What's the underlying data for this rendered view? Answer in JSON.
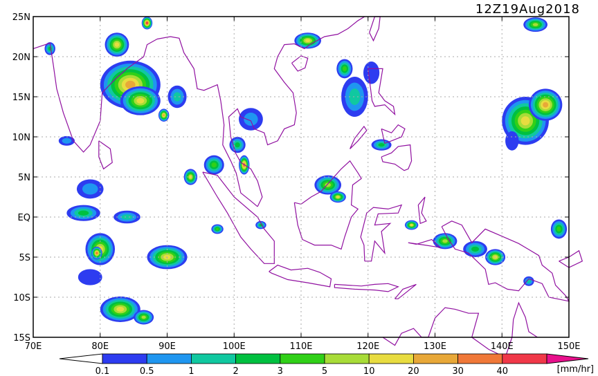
{
  "title": "12Z19Aug2018",
  "axes": {
    "lat_labels": [
      "25N",
      "20N",
      "15N",
      "10N",
      "5N",
      "EQ",
      "5S",
      "10S",
      "15S"
    ],
    "lat_values": [
      25,
      20,
      15,
      10,
      5,
      0,
      -5,
      -10,
      -15
    ],
    "lon_labels": [
      "70E",
      "80E",
      "90E",
      "100E",
      "110E",
      "120E",
      "130E",
      "140E",
      "150E"
    ],
    "lon_values": [
      70,
      80,
      90,
      100,
      110,
      120,
      130,
      140,
      150
    ],
    "lon_range": [
      70,
      150
    ],
    "lat_range": [
      -15,
      25
    ],
    "grid": true
  },
  "colorbar": {
    "unit_label": "[mm/hr]",
    "tick_labels": [
      "0.1",
      "0.5",
      "1",
      "2",
      "3",
      "5",
      "10",
      "20",
      "30",
      "40"
    ],
    "colors": [
      "#2d3cf0",
      "#1f96f0",
      "#10c8a0",
      "#00c040",
      "#30d018",
      "#a8dc38",
      "#e8dc40",
      "#e8a838",
      "#f07838",
      "#f03848"
    ],
    "low_arrow_color": "#ffffff",
    "high_arrow_color": "#e8108c"
  },
  "colors": {
    "coastline": "#9010a0",
    "grid": "#aaaaaa",
    "frame": "#000000"
  },
  "rain_regions": [
    {
      "lon": 84.5,
      "lat": 16.5,
      "rx": 4.5,
      "ry": 3.0,
      "level": 7
    },
    {
      "lon": 86.0,
      "lat": 14.5,
      "rx": 3.0,
      "ry": 1.8,
      "level": 6
    },
    {
      "lon": 82.5,
      "lat": 21.5,
      "rx": 1.8,
      "ry": 1.5,
      "level": 6
    },
    {
      "lon": 87.0,
      "lat": 24.2,
      "rx": 0.8,
      "ry": 0.8,
      "level": 9
    },
    {
      "lon": 91.5,
      "lat": 15.0,
      "rx": 1.4,
      "ry": 1.4,
      "level": 2
    },
    {
      "lon": 89.5,
      "lat": 12.7,
      "rx": 0.8,
      "ry": 0.8,
      "level": 7
    },
    {
      "lon": 102.5,
      "lat": 12.2,
      "rx": 1.8,
      "ry": 1.4,
      "level": 1
    },
    {
      "lon": 100.5,
      "lat": 9.0,
      "rx": 1.2,
      "ry": 1.0,
      "level": 3
    },
    {
      "lon": 101.5,
      "lat": 6.5,
      "rx": 0.8,
      "ry": 1.2,
      "level": 8
    },
    {
      "lon": 97.0,
      "lat": 6.5,
      "rx": 1.5,
      "ry": 1.2,
      "level": 4
    },
    {
      "lon": 93.5,
      "lat": 5.0,
      "rx": 1.0,
      "ry": 1.0,
      "level": 6
    },
    {
      "lon": 114.0,
      "lat": 4.0,
      "rx": 2.0,
      "ry": 1.2,
      "level": 5
    },
    {
      "lon": 115.5,
      "lat": 2.5,
      "rx": 1.2,
      "ry": 0.7,
      "level": 6
    },
    {
      "lon": 111.0,
      "lat": 22.0,
      "rx": 2.0,
      "ry": 1.0,
      "level": 6
    },
    {
      "lon": 118.0,
      "lat": 15.0,
      "rx": 2.0,
      "ry": 2.5,
      "level": 2
    },
    {
      "lon": 116.5,
      "lat": 18.5,
      "rx": 1.2,
      "ry": 1.2,
      "level": 4
    },
    {
      "lon": 120.5,
      "lat": 18.0,
      "rx": 1.2,
      "ry": 1.4,
      "level": 0
    },
    {
      "lon": 122.0,
      "lat": 9.0,
      "rx": 1.5,
      "ry": 0.7,
      "level": 3
    },
    {
      "lon": 143.5,
      "lat": 12.0,
      "rx": 3.5,
      "ry": 3.0,
      "level": 6
    },
    {
      "lon": 146.5,
      "lat": 14.0,
      "rx": 2.5,
      "ry": 2.0,
      "level": 7
    },
    {
      "lon": 141.5,
      "lat": 9.5,
      "rx": 1.0,
      "ry": 1.2,
      "level": 0
    },
    {
      "lon": 145.0,
      "lat": 24.0,
      "rx": 1.8,
      "ry": 0.9,
      "level": 5
    },
    {
      "lon": 90.0,
      "lat": -5.0,
      "rx": 3.0,
      "ry": 1.5,
      "level": 6
    },
    {
      "lon": 80.0,
      "lat": -4.0,
      "rx": 2.2,
      "ry": 2.0,
      "level": 6
    },
    {
      "lon": 79.5,
      "lat": -4.5,
      "rx": 0.8,
      "ry": 0.8,
      "level": 8
    },
    {
      "lon": 83.0,
      "lat": -11.5,
      "rx": 3.0,
      "ry": 1.6,
      "level": 6
    },
    {
      "lon": 86.5,
      "lat": -12.5,
      "rx": 1.5,
      "ry": 0.9,
      "level": 5
    },
    {
      "lon": 77.5,
      "lat": 0.5,
      "rx": 2.5,
      "ry": 1.0,
      "level": 3
    },
    {
      "lon": 78.5,
      "lat": 3.5,
      "rx": 2.0,
      "ry": 1.2,
      "level": 1
    },
    {
      "lon": 84.0,
      "lat": 0.0,
      "rx": 2.0,
      "ry": 0.8,
      "level": 2
    },
    {
      "lon": 78.5,
      "lat": -7.5,
      "rx": 1.8,
      "ry": 1.0,
      "level": 0
    },
    {
      "lon": 126.5,
      "lat": -1.0,
      "rx": 1.0,
      "ry": 0.6,
      "level": 6
    },
    {
      "lon": 131.5,
      "lat": -3.0,
      "rx": 1.8,
      "ry": 1.0,
      "level": 5
    },
    {
      "lon": 136.0,
      "lat": -4.0,
      "rx": 1.8,
      "ry": 1.0,
      "level": 3
    },
    {
      "lon": 139.0,
      "lat": -5.0,
      "rx": 1.5,
      "ry": 1.0,
      "level": 6
    },
    {
      "lon": 148.5,
      "lat": -1.5,
      "rx": 1.2,
      "ry": 1.2,
      "level": 4
    },
    {
      "lon": 144.0,
      "lat": -8.0,
      "rx": 0.8,
      "ry": 0.6,
      "level": 2
    },
    {
      "lon": 97.5,
      "lat": -1.5,
      "rx": 0.9,
      "ry": 0.6,
      "level": 4
    },
    {
      "lon": 104.0,
      "lat": -1.0,
      "rx": 0.8,
      "ry": 0.5,
      "level": 3
    },
    {
      "lon": 72.5,
      "lat": 21.0,
      "rx": 0.8,
      "ry": 0.8,
      "level": 3
    },
    {
      "lon": 75.0,
      "lat": 9.5,
      "rx": 1.2,
      "ry": 0.6,
      "level": 1
    }
  ]
}
